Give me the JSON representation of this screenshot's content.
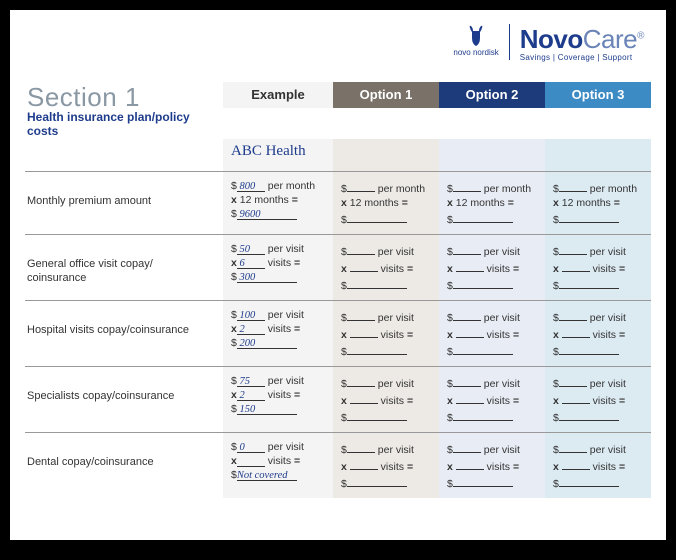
{
  "logo": {
    "company": "novo nordisk",
    "brand_bold": "Novo",
    "brand_light": "Care",
    "reg": "®",
    "tagline": "Savings | Coverage | Support"
  },
  "section": {
    "num": "Section 1",
    "title": "Health insurance plan/policy costs"
  },
  "columns": {
    "example": "Example",
    "o1": "Option 1",
    "o2": "Option 2",
    "o3": "Option 3"
  },
  "example_plan": "ABC Health",
  "rows": [
    {
      "label": "Monthly premium amount",
      "unit": "per month",
      "count_label": "12 months",
      "ex_rate": "800",
      "ex_count": "",
      "ex_total": "9600",
      "fixed_count": true
    },
    {
      "label": "General office visit copay/\ncoinsurance",
      "unit": "per visit",
      "count_label": "visits",
      "ex_rate": "50",
      "ex_count": "6",
      "ex_total": "300"
    },
    {
      "label": "Hospital visits copay/coinsurance",
      "unit": "per visit",
      "count_label": "visits",
      "ex_rate": "100",
      "ex_count": "2",
      "ex_total": "200"
    },
    {
      "label": "Specialists copay/coinsurance",
      "unit": "per visit",
      "count_label": "visits",
      "ex_rate": "75",
      "ex_count": "2",
      "ex_total": "150"
    },
    {
      "label": "Dental copay/coinsurance",
      "unit": "per visit",
      "count_label": "visits",
      "ex_rate": "0",
      "ex_count": "",
      "ex_total": "Not covered",
      "total_is_text": true
    }
  ],
  "colors": {
    "o1": "#7a7268",
    "o2": "#1d3b7a",
    "o3": "#3d8bc4",
    "accent": "#1e3c8c"
  }
}
